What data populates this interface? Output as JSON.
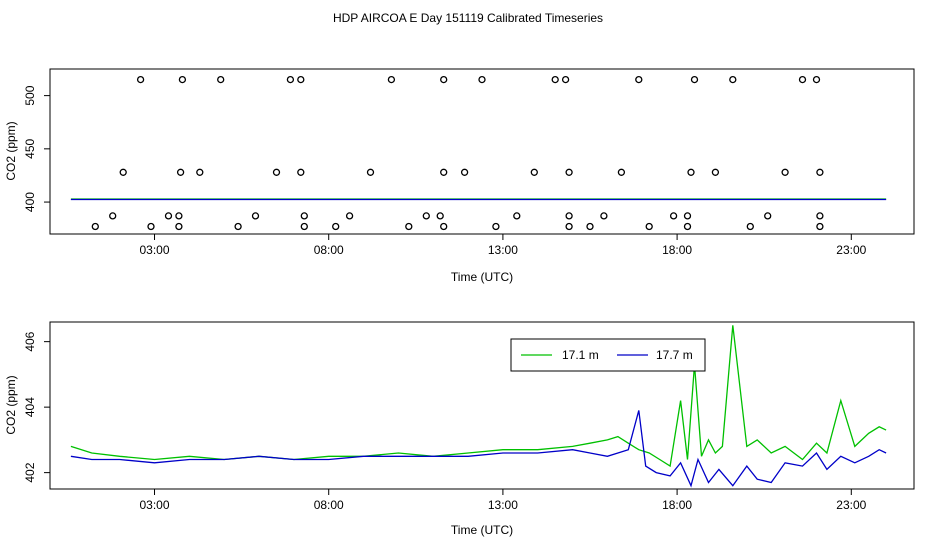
{
  "title": "HDP AIRCOA E  Day 151119  Calibrated Timeseries",
  "colors": {
    "green": "#00c000",
    "blue": "#0000c8",
    "frame": "#000000"
  },
  "chart_data": [
    {
      "type": "scatter",
      "xlabel": "Time (UTC)",
      "ylabel": "CO2 (ppm)",
      "xlim": [
        0,
        24.8
      ],
      "ylim": [
        370,
        525
      ],
      "xticks": [
        3,
        8,
        13,
        18,
        23
      ],
      "xtick_labels": [
        "03:00",
        "08:00",
        "13:00",
        "18:00",
        "23:00"
      ],
      "yticks": [
        400,
        450,
        500
      ],
      "ytick_labels": [
        "400",
        "450",
        "500"
      ],
      "points": [
        [
          1.3,
          377
        ],
        [
          1.8,
          387
        ],
        [
          2.1,
          428
        ],
        [
          2.6,
          515
        ],
        [
          2.9,
          377
        ],
        [
          3.4,
          387
        ],
        [
          3.7,
          377
        ],
        [
          3.7,
          387
        ],
        [
          3.75,
          428
        ],
        [
          3.8,
          515
        ],
        [
          4.3,
          428
        ],
        [
          4.9,
          515
        ],
        [
          5.4,
          377
        ],
        [
          5.9,
          387
        ],
        [
          6.5,
          428
        ],
        [
          6.9,
          515
        ],
        [
          7.2,
          515
        ],
        [
          7.2,
          428
        ],
        [
          7.3,
          387
        ],
        [
          7.3,
          377
        ],
        [
          8.2,
          377
        ],
        [
          8.6,
          387
        ],
        [
          9.2,
          428
        ],
        [
          9.8,
          515
        ],
        [
          10.3,
          377
        ],
        [
          10.8,
          387
        ],
        [
          11.2,
          387
        ],
        [
          11.3,
          377
        ],
        [
          11.3,
          428
        ],
        [
          11.3,
          515
        ],
        [
          11.9,
          428
        ],
        [
          12.4,
          515
        ],
        [
          12.8,
          377
        ],
        [
          13.4,
          387
        ],
        [
          13.9,
          428
        ],
        [
          14.5,
          515
        ],
        [
          14.8,
          515
        ],
        [
          14.9,
          428
        ],
        [
          14.9,
          387
        ],
        [
          14.9,
          377
        ],
        [
          15.5,
          377
        ],
        [
          15.9,
          387
        ],
        [
          16.4,
          428
        ],
        [
          16.9,
          515
        ],
        [
          17.2,
          377
        ],
        [
          17.9,
          387
        ],
        [
          18.3,
          377
        ],
        [
          18.3,
          387
        ],
        [
          18.4,
          428
        ],
        [
          18.5,
          515
        ],
        [
          19.1,
          428
        ],
        [
          19.6,
          515
        ],
        [
          20.1,
          377
        ],
        [
          20.6,
          387
        ],
        [
          21.1,
          428
        ],
        [
          21.6,
          515
        ],
        [
          22.0,
          515
        ],
        [
          22.1,
          428
        ],
        [
          22.1,
          387
        ],
        [
          22.1,
          377
        ]
      ],
      "series": [
        {
          "name": "17.1 m",
          "color": "#00c000",
          "values": "baseline ~402.6 ppm with small spikes after 17:00"
        },
        {
          "name": "17.7 m",
          "color": "#0000c8",
          "values": "baseline ~402.5 ppm"
        }
      ]
    },
    {
      "type": "line",
      "xlabel": "Time (UTC)",
      "ylabel": "CO2 (ppm)",
      "xlim": [
        0,
        24.8
      ],
      "ylim": [
        401.5,
        406.6
      ],
      "xticks": [
        3,
        8,
        13,
        18,
        23
      ],
      "xtick_labels": [
        "03:00",
        "08:00",
        "13:00",
        "18:00",
        "23:00"
      ],
      "yticks": [
        402,
        404,
        406
      ],
      "ytick_labels": [
        "402",
        "404",
        "406"
      ],
      "legend": {
        "position": "top-right",
        "entries": [
          "17.1 m",
          "17.7 m"
        ]
      },
      "series": [
        {
          "name": "17.1 m",
          "color": "#00c000",
          "x": [
            0.6,
            1.2,
            2,
            3,
            4,
            5,
            6,
            7,
            8,
            9,
            10,
            11,
            12,
            13,
            14,
            15,
            15.5,
            16,
            16.3,
            16.6,
            16.9,
            17.2,
            17.5,
            17.8,
            18.1,
            18.3,
            18.5,
            18.7,
            18.9,
            19.1,
            19.3,
            19.6,
            20.0,
            20.3,
            20.7,
            21.1,
            21.6,
            22.0,
            22.3,
            22.7,
            23.1,
            23.5,
            23.8,
            24.0
          ],
          "values": [
            402.8,
            402.6,
            402.5,
            402.4,
            402.5,
            402.4,
            402.5,
            402.4,
            402.5,
            402.5,
            402.6,
            402.5,
            402.6,
            402.7,
            402.7,
            402.8,
            402.9,
            403.0,
            403.1,
            402.9,
            402.7,
            402.6,
            402.4,
            402.2,
            404.2,
            402.4,
            405.3,
            402.5,
            403.0,
            402.6,
            402.8,
            406.5,
            402.8,
            403.0,
            402.6,
            402.8,
            402.4,
            402.9,
            402.6,
            404.2,
            402.8,
            403.2,
            403.4,
            403.3
          ]
        },
        {
          "name": "17.7 m",
          "color": "#0000c8",
          "x": [
            0.6,
            1.2,
            2,
            3,
            4,
            5,
            6,
            7,
            8,
            9,
            10,
            11,
            12,
            13,
            14,
            15,
            15.5,
            16,
            16.3,
            16.6,
            16.9,
            17.1,
            17.4,
            17.8,
            18.1,
            18.4,
            18.6,
            18.9,
            19.2,
            19.6,
            20.0,
            20.3,
            20.7,
            21.1,
            21.6,
            22.0,
            22.3,
            22.7,
            23.1,
            23.5,
            23.8,
            24.0
          ],
          "values": [
            402.5,
            402.4,
            402.4,
            402.3,
            402.4,
            402.4,
            402.5,
            402.4,
            402.4,
            402.5,
            402.5,
            402.5,
            402.5,
            402.6,
            402.6,
            402.7,
            402.6,
            402.5,
            402.6,
            402.7,
            403.9,
            402.2,
            402.0,
            401.9,
            402.3,
            401.6,
            402.4,
            401.7,
            402.1,
            401.6,
            402.2,
            401.8,
            401.7,
            402.3,
            402.2,
            402.6,
            402.1,
            402.5,
            402.3,
            402.5,
            402.7,
            402.6
          ]
        }
      ]
    }
  ]
}
